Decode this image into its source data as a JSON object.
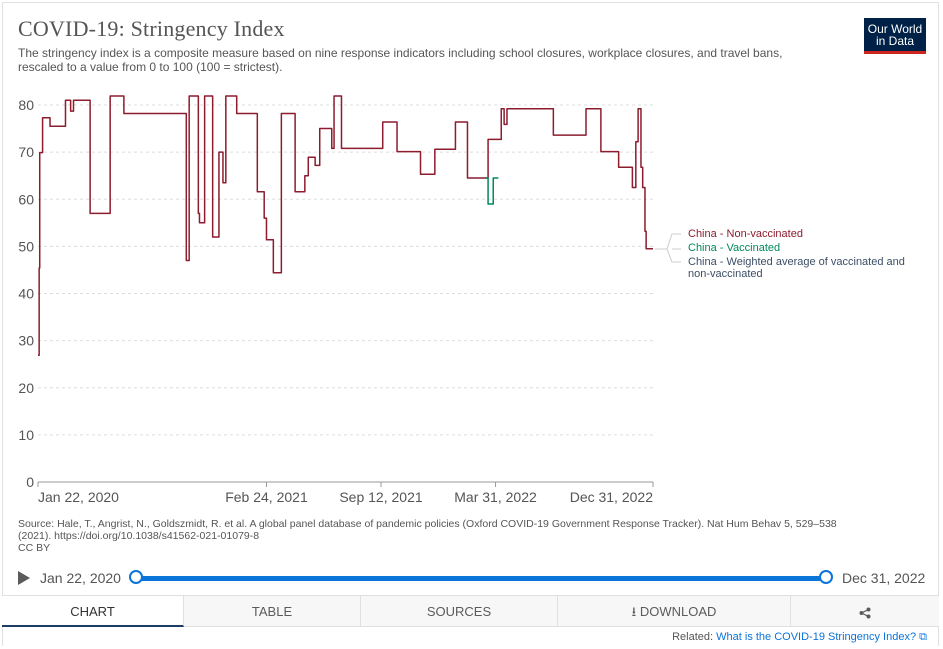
{
  "header": {
    "title": "COVID-19: Stringency Index",
    "subtitle": "The stringency index is a composite measure based on nine response indicators including school closures, workplace closures, and travel bans, rescaled to a value from 0 to 100 (100 = strictest).",
    "logo_line1": "Our World",
    "logo_line2": "in Data"
  },
  "chart_data": {
    "type": "line",
    "x_ticks": [
      "Jan 22, 2020",
      "Feb 24, 2021",
      "Sep 12, 2021",
      "Mar 31, 2022",
      "Dec 31, 2022"
    ],
    "y_ticks": [
      0,
      10,
      20,
      30,
      40,
      50,
      60,
      70,
      80
    ],
    "ylim": [
      0,
      82
    ],
    "xlim": [
      "2020-01-22",
      "2022-12-31"
    ],
    "grid": "horizontal dashed",
    "legend_placement": "right",
    "series": [
      {
        "name": "China - Non-vaccinated",
        "color": "#8c1c2e",
        "x": [
          "2020-01-22",
          "2020-01-24",
          "2020-01-25",
          "2020-01-28",
          "2020-01-30",
          "2020-02-10",
          "2020-02-12",
          "2020-02-28",
          "2020-03-10",
          "2020-03-15",
          "2020-03-19",
          "2020-03-21",
          "2020-03-24",
          "2020-04-20",
          "2020-04-22",
          "2020-05-25",
          "2020-05-27",
          "2020-06-12",
          "2020-06-20",
          "2020-08-15",
          "2020-08-20",
          "2020-10-05",
          "2020-10-07",
          "2020-10-10",
          "2020-10-12",
          "2020-10-25",
          "2020-10-28",
          "2020-10-30",
          "2020-11-05",
          "2020-11-08",
          "2020-11-20",
          "2020-11-22",
          "2020-12-01",
          "2020-12-03",
          "2020-12-05",
          "2020-12-10",
          "2020-12-13",
          "2020-12-15",
          "2020-12-25",
          "2021-01-01",
          "2021-01-03",
          "2021-01-05",
          "2021-02-05",
          "2021-02-08",
          "2021-02-10",
          "2021-02-20",
          "2021-02-24",
          "2021-03-05",
          "2021-03-08",
          "2021-03-20",
          "2021-03-22",
          "2021-04-10",
          "2021-04-15",
          "2021-04-28",
          "2021-05-02",
          "2021-05-05",
          "2021-05-08",
          "2021-05-15",
          "2021-05-20",
          "2021-05-28",
          "2021-06-15",
          "2021-06-18",
          "2021-06-22",
          "2021-07-01",
          "2021-07-05",
          "2021-07-10",
          "2021-08-20",
          "2021-09-10",
          "2021-09-15",
          "2021-10-01",
          "2021-10-10",
          "2021-11-10",
          "2021-11-20",
          "2021-12-10",
          "2021-12-15",
          "2022-01-10",
          "2022-01-20",
          "2022-02-01",
          "2022-02-10",
          "2022-02-20",
          "2022-02-25",
          "2022-03-01",
          "2022-03-05",
          "2022-03-10",
          "2022-03-14",
          "2022-03-18",
          "2022-04-05",
          "2022-04-10",
          "2022-04-12",
          "2022-04-15",
          "2022-04-18",
          "2022-04-20",
          "2022-05-05",
          "2022-05-10",
          "2022-07-01",
          "2022-07-10",
          "2022-09-01",
          "2022-09-05",
          "2022-09-15",
          "2022-10-01",
          "2022-10-15",
          "2022-11-01",
          "2022-11-10",
          "2022-11-25",
          "2022-11-27",
          "2022-12-01",
          "2022-12-05",
          "2022-12-07",
          "2022-12-10",
          "2022-12-13",
          "2022-12-15",
          "2022-12-17",
          "2022-12-19",
          "2022-12-31"
        ],
        "values": [
          26.9,
          45.4,
          69.9,
          69.9,
          77.3,
          77.3,
          75.5,
          75.5,
          81.0,
          81.0,
          78.7,
          78.7,
          81.0,
          81.0,
          57.0,
          57.0,
          81.9,
          81.9,
          78.2,
          78.2,
          78.2,
          78.2,
          47.0,
          47.0,
          81.9,
          81.9,
          57.0,
          55.0,
          55.0,
          81.9,
          81.9,
          52.0,
          52.0,
          70.0,
          70.0,
          63.5,
          63.5,
          81.9,
          81.9,
          81.9,
          78.2,
          78.2,
          78.2,
          61.6,
          61.6,
          56.0,
          51.4,
          51.4,
          44.4,
          44.4,
          78.2,
          78.2,
          61.6,
          61.6,
          65.0,
          65.0,
          68.9,
          68.9,
          67.2,
          75.0,
          75.0,
          70.8,
          81.9,
          81.9,
          70.8,
          70.8,
          70.8,
          70.8,
          76.4,
          76.4,
          70.1,
          70.1,
          65.3,
          65.3,
          70.6,
          70.6,
          76.4,
          76.4,
          64.5,
          64.5,
          64.5,
          64.5,
          64.5,
          64.5,
          64.5,
          72.7,
          72.7,
          79.2,
          79.2,
          75.9,
          75.9,
          79.2,
          79.2,
          79.2,
          79.2,
          73.6,
          73.6,
          79.2,
          79.2,
          70.1,
          70.1,
          66.8,
          66.8,
          62.5,
          62.5,
          72.2,
          79.2,
          79.2,
          66.8,
          62.5,
          62.5,
          53.2,
          49.5,
          49.5
        ]
      },
      {
        "name": "China - Vaccinated",
        "color": "#00875e",
        "x": [
          "2022-03-14",
          "2022-03-18",
          "2022-03-18",
          "2022-03-27",
          "2022-03-27",
          "2022-04-05"
        ],
        "values": [
          64.5,
          64.5,
          59.0,
          59.0,
          64.5,
          64.5
        ]
      },
      {
        "name": "China - Weighted average of vaccinated and non-vaccinated",
        "color": "#3c4e66",
        "x": [],
        "values": []
      }
    ]
  },
  "legend": {
    "non_vaccinated": "China - Non-vaccinated",
    "vaccinated": "China - Vaccinated",
    "weighted_line1": "China - Weighted average of vaccinated and",
    "weighted_line2": "non-vaccinated"
  },
  "source": {
    "line1": "Source: Hale, T., Angrist, N., Goldszmidt, R. et al. A global panel database of pandemic policies (Oxford COVID-19 Government Response Tracker). Nat Hum Behav 5, 529–538",
    "line2": "(2021). https://doi.org/10.1038/s41562-021-01079-8",
    "line3": "CC BY"
  },
  "timeline": {
    "start_label": "Jan 22, 2020",
    "end_label": "Dec 31, 2022",
    "selected_start_fraction": 0,
    "selected_end_fraction": 1
  },
  "tabs": {
    "chart": "CHART",
    "table": "TABLE",
    "sources": "SOURCES",
    "download": "DOWNLOAD"
  },
  "related": {
    "prefix": "Related:",
    "link": "What is the COVID-19 Stringency Index?"
  }
}
